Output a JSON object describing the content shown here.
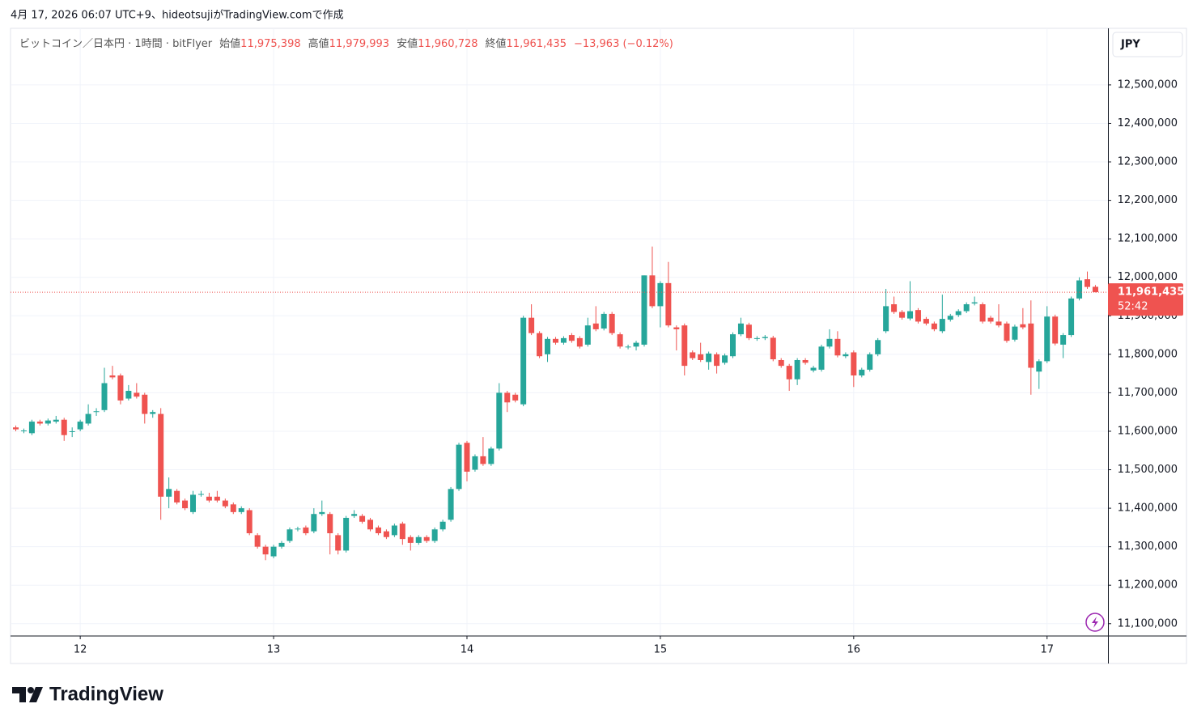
{
  "header": {
    "attribution": "4月 17, 2026 06:07 UTC+9、hideotsujiがTradingView.comで作成"
  },
  "footer": {
    "brand": "TradingView"
  },
  "chart_data": {
    "type": "candlestick",
    "symbol": "ビットコイン／日本円 · 1時間 · bitFlyer",
    "legend_items": [
      {
        "label": "始値",
        "value": "11,975,398"
      },
      {
        "label": "高値",
        "value": "11,979,993"
      },
      {
        "label": "安値",
        "value": "11,960,728"
      },
      {
        "label": "終値",
        "value": "11,961,435"
      }
    ],
    "change": "−13,963 (−0.12%)",
    "currency": "JPY",
    "last_price_label": "11,961,435",
    "countdown": "52:42",
    "up_color": "#26a69a",
    "down_color": "#ef5350",
    "grid": true,
    "categories": [
      null,
      null,
      null,
      null,
      null,
      null,
      null,
      null,
      "12",
      null,
      null,
      null,
      null,
      null,
      null,
      null,
      null,
      null,
      null,
      null,
      null,
      null,
      null,
      null,
      null,
      null,
      null,
      null,
      null,
      null,
      null,
      null,
      "13",
      null,
      null,
      null,
      null,
      null,
      null,
      null,
      null,
      null,
      null,
      null,
      null,
      null,
      null,
      null,
      null,
      null,
      null,
      null,
      null,
      null,
      null,
      null,
      "14",
      null,
      null,
      null,
      null,
      null,
      null,
      null,
      null,
      null,
      null,
      null,
      null,
      null,
      null,
      null,
      null,
      null,
      null,
      null,
      null,
      null,
      null,
      null,
      "15",
      null,
      null,
      null,
      null,
      null,
      null,
      null,
      null,
      null,
      null,
      null,
      null,
      null,
      null,
      null,
      null,
      null,
      null,
      null,
      null,
      null,
      null,
      null,
      "16",
      null,
      null,
      null,
      null,
      null,
      null,
      null,
      null,
      null,
      null,
      null,
      null,
      null,
      null,
      null,
      null,
      null,
      null,
      null,
      null,
      null,
      null,
      null,
      "17",
      null,
      null,
      null,
      null,
      null,
      null
    ],
    "open": [
      11610000,
      11600000,
      11595000,
      11625000,
      11620000,
      11625000,
      11630000,
      11598000,
      11605000,
      11620000,
      11650000,
      11655000,
      11745000,
      11745000,
      11685000,
      11700000,
      11695000,
      11645000,
      11645000,
      11430000,
      11445000,
      11420000,
      11390000,
      11435000,
      11430000,
      11430000,
      11420000,
      11410000,
      11390000,
      11395000,
      11330000,
      11300000,
      11275000,
      11300000,
      11315000,
      11345000,
      11350000,
      11340000,
      11385000,
      11385000,
      11330000,
      11290000,
      11380000,
      11380000,
      11370000,
      11350000,
      11340000,
      11330000,
      11360000,
      11325000,
      11310000,
      11325000,
      11315000,
      11345000,
      11370000,
      11450000,
      11570000,
      11500000,
      11535000,
      11515000,
      11555000,
      11700000,
      11695000,
      11670000,
      11895000,
      11855000,
      11800000,
      11840000,
      11830000,
      11850000,
      11842000,
      11825000,
      11880000,
      11867000,
      11905000,
      11852000,
      11818000,
      11820000,
      11825000,
      12005000,
      11925000,
      11985000,
      11870000,
      11875000,
      11805000,
      11800000,
      11780000,
      11800000,
      11778000,
      11795000,
      11852000,
      11877000,
      11840000,
      11842000,
      11843000,
      11785000,
      11770000,
      11735000,
      11785000,
      11758000,
      11760000,
      11820000,
      11840000,
      11795000,
      11805000,
      11745000,
      11760000,
      11800000,
      11860000,
      11930000,
      11910000,
      11893000,
      11915000,
      11892000,
      11880000,
      11860000,
      11890000,
      11902000,
      11912000,
      11932000,
      11930000,
      11895000,
      11885000,
      11880000,
      11838000,
      11878000,
      11880000,
      11755000,
      11782000,
      11898000,
      11825000,
      11850000,
      11945000,
      11995000,
      11975398
    ],
    "high": [
      11615000,
      11607000,
      11630000,
      11630000,
      11633000,
      11640000,
      11635000,
      11610000,
      11630000,
      11670000,
      11660000,
      11765000,
      11770000,
      11750000,
      11720000,
      11725000,
      11700000,
      11655000,
      11660000,
      11480000,
      11450000,
      11425000,
      11445000,
      11445000,
      11440000,
      11445000,
      11425000,
      11415000,
      11405000,
      11400000,
      11335000,
      11305000,
      11305000,
      11315000,
      11350000,
      11352000,
      11355000,
      11400000,
      11420000,
      11390000,
      11335000,
      11380000,
      11395000,
      11385000,
      11375000,
      11355000,
      11345000,
      11360000,
      11365000,
      11330000,
      11330000,
      11330000,
      11350000,
      11370000,
      11455000,
      11570000,
      11575000,
      11540000,
      11585000,
      11560000,
      11725000,
      11705000,
      11700000,
      11900000,
      11930000,
      11860000,
      11845000,
      11845000,
      11847000,
      11855000,
      11847000,
      11895000,
      11925000,
      11910000,
      11910000,
      11857000,
      11825000,
      11835000,
      12005000,
      12080000,
      11990000,
      12040000,
      11875000,
      11880000,
      11810000,
      11830000,
      11807000,
      11805000,
      11802000,
      11857000,
      11895000,
      11882000,
      11847000,
      11850000,
      11848000,
      11790000,
      11775000,
      11790000,
      11790000,
      11770000,
      11825000,
      11865000,
      11860000,
      11805000,
      11810000,
      11765000,
      11805000,
      11842000,
      11970000,
      11950000,
      11915000,
      11990000,
      11920000,
      11897000,
      11885000,
      11955000,
      11905000,
      11917000,
      11935000,
      11950000,
      11935000,
      11900000,
      11930000,
      11885000,
      11877000,
      11920000,
      11940000,
      11787000,
      11925000,
      11903000,
      11855000,
      11950000,
      12000000,
      12015000,
      11979993
    ],
    "low": [
      11600000,
      11595000,
      11590000,
      11615000,
      11615000,
      11620000,
      11575000,
      11585000,
      11600000,
      11615000,
      11640000,
      11650000,
      11735000,
      11670000,
      11680000,
      11685000,
      11620000,
      11635000,
      11370000,
      11400000,
      11410000,
      11395000,
      11385000,
      11430000,
      11415000,
      11415000,
      11400000,
      11385000,
      11385000,
      11330000,
      11295000,
      11265000,
      11270000,
      11295000,
      11310000,
      11340000,
      11330000,
      11335000,
      11380000,
      11280000,
      11280000,
      11285000,
      11375000,
      11360000,
      11340000,
      11330000,
      11320000,
      11325000,
      11305000,
      11290000,
      11305000,
      11310000,
      11310000,
      11340000,
      11365000,
      11445000,
      11470000,
      11495000,
      11510000,
      11510000,
      11550000,
      11650000,
      11675000,
      11665000,
      11850000,
      11790000,
      11780000,
      11825000,
      11825000,
      11830000,
      11815000,
      11820000,
      11860000,
      11862000,
      11850000,
      11815000,
      11813000,
      11810000,
      11820000,
      11920000,
      11870000,
      11870000,
      11810000,
      11745000,
      11785000,
      11780000,
      11760000,
      11750000,
      11773000,
      11790000,
      11847000,
      11837000,
      11835000,
      11837000,
      11782000,
      11765000,
      11705000,
      11720000,
      11773000,
      11753000,
      11755000,
      11815000,
      11792000,
      11790000,
      11715000,
      11740000,
      11755000,
      11795000,
      11855000,
      11905000,
      11890000,
      11888000,
      11880000,
      11875000,
      11860000,
      11855000,
      11885000,
      11897000,
      11907000,
      11927000,
      11880000,
      11880000,
      11870000,
      11830000,
      11833000,
      11865000,
      11695000,
      11710000,
      11777000,
      11823000,
      11790000,
      11845000,
      11940000,
      11970000,
      11960728
    ],
    "close": [
      11605000,
      11602000,
      11625000,
      11620000,
      11628000,
      11630000,
      11590000,
      11600000,
      11625000,
      11645000,
      11652000,
      11725000,
      11740000,
      11680000,
      11705000,
      11690000,
      11645000,
      11650000,
      11430000,
      11450000,
      11415000,
      11400000,
      11435000,
      11437000,
      11420000,
      11420000,
      11405000,
      11390000,
      11400000,
      11335000,
      11300000,
      11280000,
      11300000,
      11310000,
      11345000,
      11347000,
      11335000,
      11385000,
      11390000,
      11335000,
      11290000,
      11375000,
      11385000,
      11365000,
      11345000,
      11335000,
      11325000,
      11355000,
      11320000,
      11310000,
      11325000,
      11315000,
      11345000,
      11365000,
      11450000,
      11565000,
      11495000,
      11535000,
      11515000,
      11555000,
      11700000,
      11675000,
      11680000,
      11895000,
      11855000,
      11795000,
      11840000,
      11830000,
      11842000,
      11835000,
      11820000,
      11875000,
      11865000,
      11905000,
      11855000,
      11820000,
      11820000,
      11830000,
      12005000,
      11925000,
      11985000,
      11875000,
      11865000,
      11770000,
      11790000,
      11785000,
      11802000,
      11770000,
      11797000,
      11852000,
      11880000,
      11842000,
      11842000,
      11845000,
      11787000,
      11770000,
      11735000,
      11785000,
      11778000,
      11765000,
      11820000,
      11840000,
      11797000,
      11800000,
      11745000,
      11760000,
      11800000,
      11837000,
      11925000,
      11910000,
      11895000,
      11912000,
      11885000,
      11880000,
      11865000,
      11892000,
      11900000,
      11912000,
      11930000,
      11935000,
      11885000,
      11885000,
      11875000,
      11835000,
      11872000,
      11870000,
      11765000,
      11782000,
      11898000,
      11828000,
      11850000,
      11945000,
      11992000,
      11975000,
      11961435
    ],
    "ylim": [
      11068000,
      12647000
    ],
    "yticks": [
      {
        "value": 11100000,
        "label": "11,100,000"
      },
      {
        "value": 11200000,
        "label": "11,200,000"
      },
      {
        "value": 11300000,
        "label": "11,300,000"
      },
      {
        "value": 11400000,
        "label": "11,400,000"
      },
      {
        "value": 11500000,
        "label": "11,500,000"
      },
      {
        "value": 11600000,
        "label": "11,600,000"
      },
      {
        "value": 11700000,
        "label": "11,700,000"
      },
      {
        "value": 11800000,
        "label": "11,800,000"
      },
      {
        "value": 11900000,
        "label": "11,900,000"
      },
      {
        "value": 12000000,
        "label": "12,000,000"
      },
      {
        "value": 12100000,
        "label": "12,100,000"
      },
      {
        "value": 12200000,
        "label": "12,200,000"
      },
      {
        "value": 12300000,
        "label": "12,300,000"
      },
      {
        "value": 12400000,
        "label": "12,400,000"
      },
      {
        "value": 12500000,
        "label": "12,500,000"
      }
    ]
  }
}
